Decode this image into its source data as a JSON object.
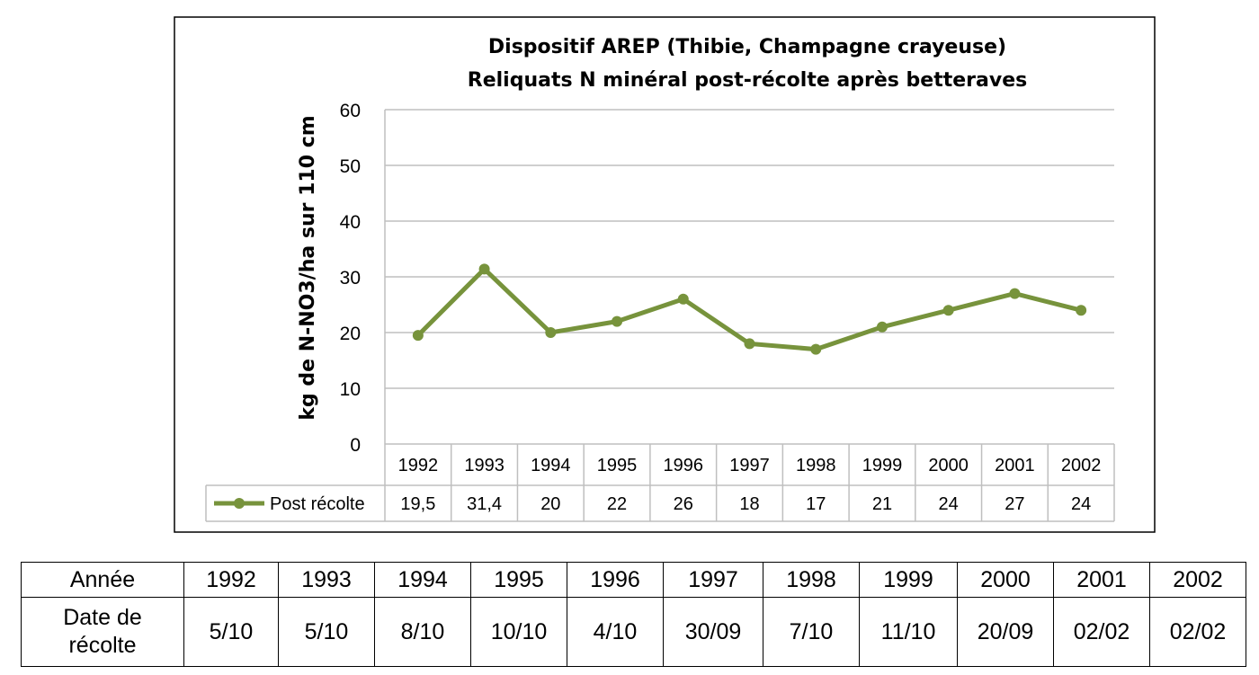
{
  "chart_data": {
    "type": "line",
    "title": [
      "Dispositif AREP (Thibie, Champagne crayeuse)",
      "Reliquats N minéral post-récolte après betteraves"
    ],
    "ylabel": "kg de N-NO3/ha sur 110 cm",
    "xlabel": "",
    "ylim": [
      0,
      60
    ],
    "yticks": [
      "0",
      "10",
      "20",
      "30",
      "40",
      "50",
      "60"
    ],
    "grid": true,
    "categories": [
      "1992",
      "1993",
      "1994",
      "1995",
      "1996",
      "1997",
      "1998",
      "1999",
      "2000",
      "2001",
      "2002"
    ],
    "series": [
      {
        "name": "Post récolte",
        "values": [
          19.5,
          31.4,
          20,
          22,
          26,
          18,
          17,
          21,
          24,
          27,
          24
        ],
        "labels": [
          "19,5",
          "31,4",
          "20",
          "22",
          "26",
          "18",
          "17",
          "21",
          "24",
          "27",
          "24"
        ],
        "color": "#77933C"
      }
    ],
    "legend": "data-table"
  },
  "harvest_table": {
    "year_header": "Année",
    "date_header": [
      "Date de",
      "récolte"
    ],
    "years": [
      "1992",
      "1993",
      "1994",
      "1995",
      "1996",
      "1997",
      "1998",
      "1999",
      "2000",
      "2001",
      "2002"
    ],
    "dates": [
      "5/10",
      "5/10",
      "8/10",
      "10/10",
      "4/10",
      "30/09",
      "7/10",
      "11/10",
      "20/09",
      "02/02",
      "02/02"
    ]
  }
}
